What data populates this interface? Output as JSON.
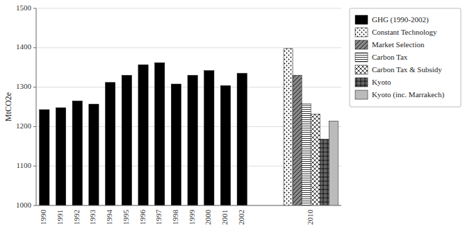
{
  "chart_data": {
    "type": "bar",
    "y_label": "MtCO2e",
    "categories": [
      "1990",
      "1991",
      "1992",
      "1993",
      "1994",
      "1995",
      "1996",
      "1997",
      "1998",
      "1999",
      "2000",
      "2001",
      "2002",
      "2010"
    ],
    "series": [
      {
        "name": "GHG (1990-2002)",
        "color": "black",
        "values": [
          1243,
          1248,
          1265,
          1257,
          1312,
          1330,
          1357,
          1362,
          1308,
          1330,
          1342,
          1304,
          1335,
          null
        ]
      },
      {
        "name": "Constant Technology",
        "color": "white",
        "values": [
          null,
          null,
          null,
          null,
          null,
          null,
          null,
          null,
          null,
          null,
          null,
          null,
          null,
          1398
        ]
      },
      {
        "name": "Market Selection",
        "color": "#888888",
        "values": [
          null,
          null,
          null,
          null,
          null,
          null,
          null,
          null,
          null,
          null,
          null,
          null,
          null,
          1330
        ]
      },
      {
        "name": "Carbon Tax",
        "color": "white",
        "values": [
          null,
          null,
          null,
          null,
          null,
          null,
          null,
          null,
          null,
          null,
          null,
          null,
          null,
          1258
        ]
      },
      {
        "name": "Carbon Tax & Subsidy",
        "color": "white",
        "values": [
          null,
          null,
          null,
          null,
          null,
          null,
          null,
          null,
          null,
          null,
          null,
          null,
          null,
          1232
        ]
      },
      {
        "name": "Kyoto",
        "color": "#666666",
        "values": [
          null,
          null,
          null,
          null,
          null,
          null,
          null,
          null,
          null,
          null,
          null,
          null,
          null,
          1168
        ]
      },
      {
        "name": "Kyoto (inc. Marrakech)",
        "color": "#bbbbbb",
        "values": [
          null,
          null,
          null,
          null,
          null,
          null,
          null,
          null,
          null,
          null,
          null,
          null,
          null,
          1214
        ]
      }
    ],
    "ylim": [
      1000,
      1500
    ],
    "yticks": [
      1000,
      1100,
      1200,
      1300,
      1400,
      1500
    ],
    "grid": true,
    "legend": "right"
  }
}
